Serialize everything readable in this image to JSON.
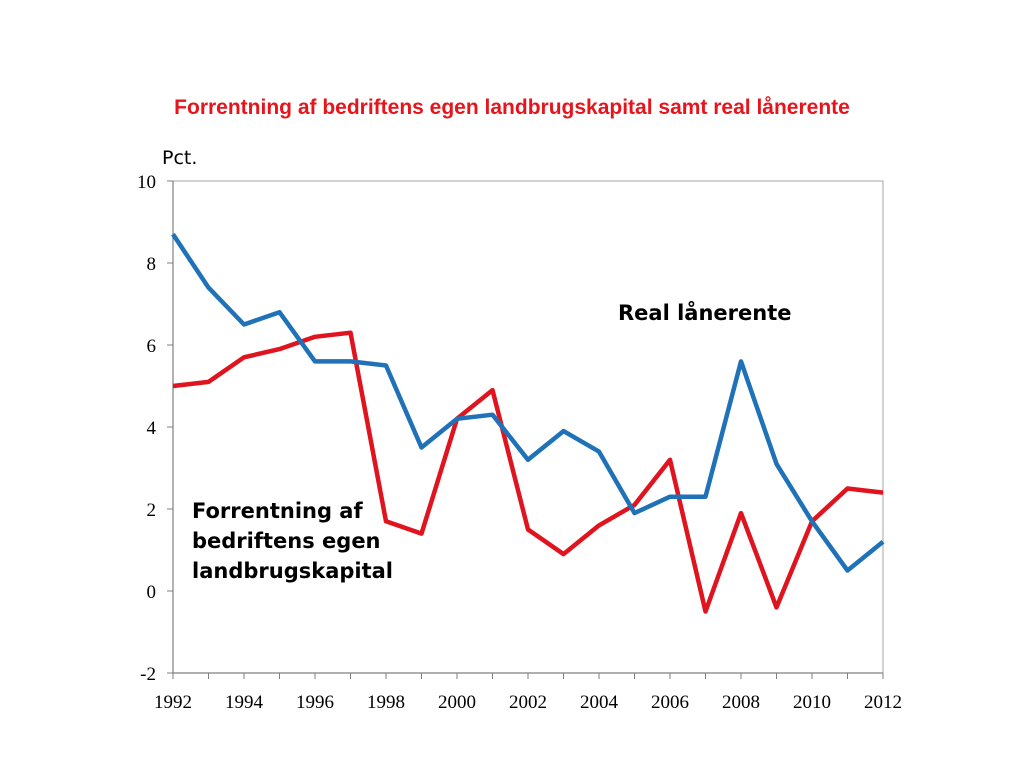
{
  "slide": {
    "title": "Forrentning af bedriftens egen landbrugskapital samt real lånerente",
    "title_color": "#e8141c"
  },
  "chart_data": {
    "type": "line",
    "ylabel": "Pct.",
    "xlim": [
      1992,
      2012
    ],
    "ylim": [
      -2,
      10
    ],
    "x_ticks": [
      "1992",
      "1994",
      "1996",
      "1998",
      "2000",
      "2002",
      "2004",
      "2006",
      "2008",
      "2010",
      "2012"
    ],
    "y_ticks": [
      "10",
      "8",
      "6",
      "4",
      "2",
      "0",
      "-2"
    ],
    "grid": false,
    "x": [
      1992,
      1993,
      1994,
      1995,
      1996,
      1997,
      1998,
      1999,
      2000,
      2001,
      2002,
      2003,
      2004,
      2005,
      2006,
      2007,
      2008,
      2009,
      2010,
      2011,
      2012
    ],
    "series": [
      {
        "name": "Real lånerente",
        "color": "#1f72b8",
        "values": [
          8.7,
          7.4,
          6.5,
          6.8,
          5.6,
          5.6,
          5.5,
          3.5,
          4.2,
          4.3,
          3.2,
          3.9,
          3.4,
          1.9,
          2.3,
          2.3,
          5.6,
          3.1,
          1.7,
          0.5,
          1.2
        ]
      },
      {
        "name": "Forrentning af bedriftens egen landbrugskapital",
        "label_lines": [
          "Forrentning af",
          "bedriftens egen",
          "landbrugskapital"
        ],
        "color": "#e0141e",
        "values": [
          5.0,
          5.1,
          5.7,
          5.9,
          6.2,
          6.3,
          1.7,
          1.4,
          4.2,
          4.9,
          1.5,
          0.9,
          1.6,
          2.1,
          3.2,
          -0.5,
          1.9,
          -0.4,
          1.7,
          2.5,
          2.4
        ]
      }
    ]
  }
}
